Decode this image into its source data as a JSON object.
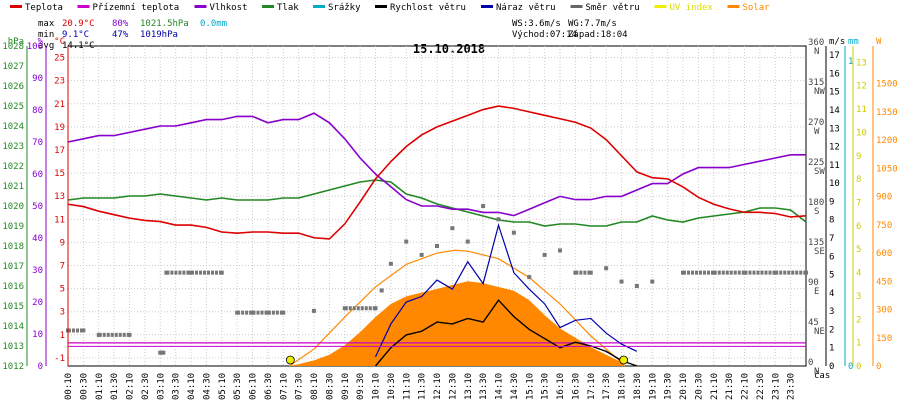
{
  "chart_data": {
    "type": "line",
    "title": "15.10.2018",
    "x_unit": "čas",
    "x_ticks": [
      "00:10",
      "00:30",
      "01:10",
      "01:30",
      "02:10",
      "02:30",
      "03:10",
      "03:30",
      "04:10",
      "04:30",
      "05:10",
      "05:30",
      "06:10",
      "06:30",
      "07:10",
      "07:30",
      "08:10",
      "08:30",
      "09:10",
      "09:30",
      "10:10",
      "10:30",
      "11:10",
      "11:30",
      "12:10",
      "12:30",
      "13:10",
      "13:30",
      "14:10",
      "14:30",
      "15:10",
      "15:30",
      "16:10",
      "16:30",
      "17:10",
      "17:30",
      "18:10",
      "18:30",
      "19:10",
      "19:30",
      "20:10",
      "20:30",
      "21:10",
      "21:30",
      "22:10",
      "22:30",
      "23:10",
      "23:30"
    ],
    "legend": [
      {
        "name": "Teplota",
        "color": "#dd0000"
      },
      {
        "name": "Přízemní teplota",
        "color": "#cc00cc"
      },
      {
        "name": "Vlhkost",
        "color": "#8800cc"
      },
      {
        "name": "Tlak",
        "color": "#228822"
      },
      {
        "name": "Srážky",
        "color": "#00aacc"
      },
      {
        "name": "Rychlost větru",
        "color": "#000000"
      },
      {
        "name": "Náraz větru",
        "color": "#0000aa"
      },
      {
        "name": "Směr větru",
        "color": "#666666"
      },
      {
        "name": "UV index",
        "color": "#eeee00"
      },
      {
        "name": "Solar",
        "color": "#ff8800"
      }
    ],
    "stats": {
      "max_label": "max",
      "max_temp": "20.9°C",
      "max_hum": "80%",
      "max_press": "1021.5hPa",
      "max_rain": "0.0mm",
      "min_label": "min",
      "min_temp": "9.1°C",
      "min_hum": "47%",
      "min_press": "1019hPa",
      "avg_label": "avg",
      "avg_temp": "14.1°C",
      "ws": "WS:3.6m/s",
      "wg": "WG:7.7m/s",
      "sunrise": "Východ:07:14",
      "sunset": "Západ:18:04"
    },
    "axes": {
      "hpa": {
        "unit": "hPa",
        "ticks": [
          "1012",
          "1013",
          "1014",
          "1015",
          "1016",
          "1017",
          "1018",
          "1019",
          "1020",
          "1021",
          "1022",
          "1023",
          "1024",
          "1025",
          "1026",
          "1027",
          "1028"
        ],
        "color": "#228822"
      },
      "percent": {
        "unit": "%",
        "ticks": [
          "0",
          "10",
          "20",
          "30",
          "40",
          "50",
          "60",
          "70",
          "80",
          "90",
          "100"
        ],
        "color": "#8800cc"
      },
      "celsius": {
        "unit": "°C",
        "ticks": [
          "-1",
          "1",
          "3",
          "5",
          "7",
          "9",
          "11",
          "13",
          "15",
          "17",
          "19",
          "21",
          "23",
          "25"
        ],
        "color": "#dd0000"
      },
      "ms": {
        "unit": "m/s",
        "ticks": [
          "0",
          "1",
          "2",
          "3",
          "4",
          "5",
          "6",
          "7",
          "8",
          "9",
          "10",
          "11",
          "12",
          "13",
          "14",
          "15",
          "16",
          "17"
        ],
        "color": "#000000"
      },
      "mm": {
        "unit": "mm",
        "ticks": [
          "0",
          "1"
        ],
        "color": "#00aacc"
      },
      "uv": {
        "unit": "",
        "ticks": [
          "0",
          "1",
          "2",
          "3",
          "4",
          "5",
          "6",
          "7",
          "8",
          "9",
          "10",
          "11",
          "12",
          "13"
        ],
        "color": "#cccc00"
      },
      "watt": {
        "unit": "W",
        "ticks": [
          "0",
          "150",
          "300",
          "450",
          "600",
          "750",
          "900",
          "1050",
          "1200",
          "1350",
          "1500"
        ],
        "color": "#ff8800"
      },
      "dir": {
        "ticks": [
          "0\nN",
          "45\nNE",
          "90\nE",
          "135\nSE",
          "180\nS",
          "225\nSW",
          "270\nW",
          "315\nNW",
          "360\nN"
        ],
        "color": "#444444"
      }
    },
    "series": [
      {
        "name": "Teplota",
        "unit": "°C",
        "x_hours": [
          0,
          0.5,
          1,
          1.5,
          2,
          2.5,
          3,
          3.5,
          4,
          4.5,
          5,
          5.5,
          6,
          6.5,
          7,
          7.5,
          8,
          8.5,
          9,
          9.5,
          10,
          10.5,
          11,
          11.5,
          12,
          12.5,
          13,
          13.5,
          14,
          14.5,
          15,
          15.5,
          16,
          16.5,
          17,
          17.5,
          18,
          18.5,
          19,
          19.5,
          20,
          20.5,
          21,
          21.5,
          22,
          22.5,
          23,
          23.5,
          24
        ],
        "values": [
          12.3,
          12.1,
          11.7,
          11.4,
          11.1,
          10.9,
          10.8,
          10.5,
          10.5,
          10.3,
          9.9,
          9.8,
          9.9,
          9.9,
          9.8,
          9.8,
          9.4,
          9.3,
          10.6,
          12.5,
          14.5,
          16.0,
          17.3,
          18.3,
          19.0,
          19.5,
          20.0,
          20.5,
          20.8,
          20.6,
          20.3,
          20.0,
          19.7,
          19.4,
          18.9,
          17.9,
          16.5,
          15.1,
          14.6,
          14.5,
          13.8,
          12.9,
          12.3,
          11.9,
          11.6,
          11.6,
          11.5,
          11.2,
          11.3
        ]
      },
      {
        "name": "Vlhkost",
        "unit": "%",
        "x_hours": [
          0,
          0.5,
          1,
          1.5,
          2,
          2.5,
          3,
          3.5,
          4,
          4.5,
          5,
          5.5,
          6,
          6.5,
          7,
          7.5,
          8,
          8.5,
          9,
          9.5,
          10,
          10.5,
          11,
          11.5,
          12,
          12.5,
          13,
          13.5,
          14,
          14.5,
          15,
          15.5,
          16,
          16.5,
          17,
          17.5,
          18,
          18.5,
          19,
          19.5,
          20,
          20.5,
          21,
          21.5,
          22,
          22.5,
          23,
          23.5,
          24
        ],
        "values": [
          70,
          71,
          72,
          72,
          73,
          74,
          75,
          75,
          76,
          77,
          77,
          78,
          78,
          76,
          77,
          77,
          79,
          76,
          71,
          65,
          60,
          56,
          52,
          50,
          50,
          49,
          49,
          48,
          48,
          47,
          49,
          51,
          53,
          52,
          52,
          53,
          53,
          55,
          57,
          57,
          60,
          62,
          62,
          62,
          63,
          64,
          65,
          66,
          66
        ]
      },
      {
        "name": "Tlak",
        "unit": "hPa",
        "x_hours": [
          0,
          0.5,
          1,
          1.5,
          2,
          2.5,
          3,
          3.5,
          4,
          4.5,
          5,
          5.5,
          6,
          6.5,
          7,
          7.5,
          8,
          8.5,
          9,
          9.5,
          10,
          10.5,
          11,
          11.5,
          12,
          12.5,
          13,
          13.5,
          14,
          14.5,
          15,
          15.5,
          16,
          16.5,
          17,
          17.5,
          18,
          18.5,
          19,
          19.5,
          20,
          20.5,
          21,
          21.5,
          22,
          22.5,
          23,
          23.5,
          24
        ],
        "values": [
          1020.3,
          1020.4,
          1020.4,
          1020.4,
          1020.5,
          1020.5,
          1020.6,
          1020.5,
          1020.4,
          1020.3,
          1020.4,
          1020.3,
          1020.3,
          1020.3,
          1020.4,
          1020.4,
          1020.6,
          1020.8,
          1021.0,
          1021.2,
          1021.3,
          1021.2,
          1020.6,
          1020.4,
          1020.1,
          1019.9,
          1019.7,
          1019.5,
          1019.3,
          1019.2,
          1019.2,
          1019.0,
          1019.1,
          1019.1,
          1019.0,
          1019.0,
          1019.2,
          1019.2,
          1019.5,
          1019.3,
          1019.2,
          1019.4,
          1019.5,
          1019.6,
          1019.7,
          1019.9,
          1019.9,
          1019.8,
          1019.2
        ]
      },
      {
        "name": "Přízemní teplota",
        "unit": "°C",
        "x_hours": [
          0,
          24
        ],
        "values": [
          0.3,
          0.3
        ]
      },
      {
        "name": "Rychlost větru",
        "unit": "m/s",
        "x_hours": [
          10,
          10.5,
          11,
          11.5,
          12,
          12.5,
          13,
          13.5,
          14,
          14.5,
          15,
          15.5,
          16,
          16.5,
          17,
          17.5,
          18,
          18.5
        ],
        "values": [
          0,
          1.0,
          1.7,
          1.9,
          2.4,
          2.3,
          2.6,
          2.4,
          3.6,
          2.7,
          2.0,
          1.5,
          1.0,
          1.3,
          1.1,
          0.8,
          0.3,
          0
        ]
      },
      {
        "name": "Náraz větru",
        "unit": "m/s",
        "x_hours": [
          10,
          10.5,
          11,
          11.5,
          12,
          12.5,
          13,
          13.5,
          14,
          14.5,
          15,
          15.5,
          16,
          16.5,
          17,
          17.5,
          18,
          18.5
        ],
        "values": [
          0.5,
          2.3,
          3.5,
          3.8,
          4.7,
          4.2,
          5.7,
          4.5,
          7.7,
          5.1,
          4.2,
          3.4,
          2.1,
          2.5,
          2.6,
          1.8,
          1.2,
          0.8
        ]
      },
      {
        "name": "Solar",
        "unit": "W",
        "x_hours": [
          7.2,
          7.5,
          8,
          8.5,
          9,
          9.5,
          10,
          10.5,
          11,
          11.5,
          12,
          12.5,
          13,
          13.5,
          14,
          14.5,
          15,
          15.5,
          16,
          16.5,
          17,
          17.5,
          18,
          18.1
        ],
        "values": [
          0,
          10,
          30,
          60,
          110,
          180,
          260,
          330,
          370,
          390,
          410,
          430,
          450,
          440,
          420,
          400,
          350,
          270,
          200,
          150,
          100,
          60,
          20,
          0
        ]
      },
      {
        "name": "Solar (theoretical)",
        "unit": "W",
        "x_hours": [
          7.2,
          8,
          9,
          10,
          11,
          12,
          12.6,
          13,
          14,
          15,
          16,
          17,
          18,
          18.1
        ],
        "values": [
          0,
          90,
          260,
          420,
          540,
          600,
          615,
          610,
          570,
          470,
          330,
          160,
          20,
          0
        ]
      }
    ],
    "wind_direction": {
      "unit": "°",
      "x_hours": [
        0,
        0.5,
        1,
        2,
        3,
        3.1,
        3.2,
        4,
        5,
        5.5,
        6,
        6.5,
        7,
        8,
        9,
        10,
        10.2,
        10.5,
        11,
        11.5,
        12,
        12.5,
        13,
        13.5,
        14,
        14.5,
        15,
        15.5,
        16,
        16.5,
        17,
        17.5,
        18,
        18.5,
        19,
        20,
        21,
        22,
        23,
        24
      ],
      "values": [
        40,
        40,
        35,
        35,
        15,
        15,
        105,
        105,
        105,
        60,
        60,
        60,
        60,
        62,
        65,
        65,
        85,
        115,
        140,
        125,
        135,
        155,
        140,
        180,
        165,
        150,
        100,
        125,
        130,
        105,
        105,
        110,
        95,
        90,
        95,
        105,
        105,
        105,
        105,
        105
      ]
    },
    "sun_markers": {
      "sunrise_hour": 7.23,
      "sunset_hour": 18.07
    }
  }
}
